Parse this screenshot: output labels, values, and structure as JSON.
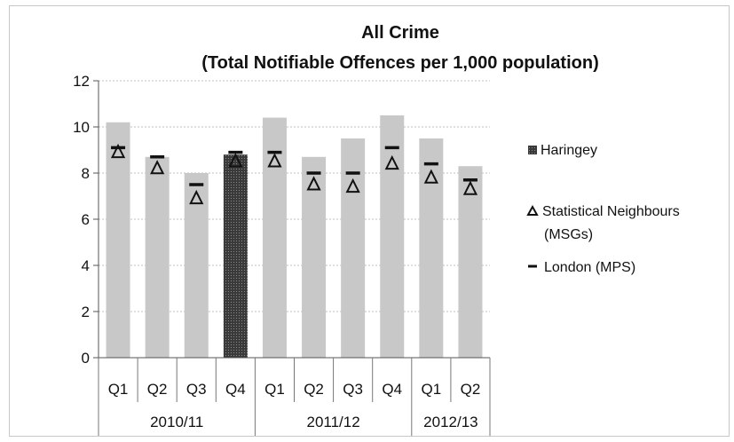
{
  "chart_data": {
    "type": "bar",
    "title": "All Crime",
    "subtitle": "(Total Notifiable Offences per 1,000 population)",
    "ylim": [
      0,
      12
    ],
    "yticks": [
      0,
      2,
      4,
      6,
      8,
      10,
      12
    ],
    "grid": true,
    "legend_position": "right",
    "categories": [
      "Q1",
      "Q2",
      "Q3",
      "Q4",
      "Q1",
      "Q2",
      "Q3",
      "Q4",
      "Q1",
      "Q2"
    ],
    "groups": [
      {
        "label": "2010/11",
        "count": 4
      },
      {
        "label": "2011/12",
        "count": 4
      },
      {
        "label": "2012/13",
        "count": 2
      }
    ],
    "series": [
      {
        "name": "Haringey",
        "kind": "bar",
        "values": [
          10.2,
          8.7,
          8.0,
          8.8,
          10.4,
          8.7,
          9.5,
          10.5,
          9.5,
          8.3
        ]
      },
      {
        "name": "Statistical Neighbours (MSGs)",
        "kind": "triangle-marker",
        "values": [
          8.9,
          8.2,
          6.9,
          8.5,
          8.5,
          7.5,
          7.4,
          8.4,
          7.8,
          7.3
        ]
      },
      {
        "name": "London (MPS)",
        "kind": "dash-marker",
        "values": [
          9.1,
          8.7,
          7.5,
          8.9,
          8.9,
          8.0,
          8.0,
          9.1,
          8.4,
          7.7
        ]
      }
    ],
    "highlighted_index": 3,
    "colors": {
      "bar": "#c8c8c8",
      "bar_highlight": "#2b2b2b",
      "marker": "#111111",
      "grid": "#bfbfbf"
    }
  }
}
